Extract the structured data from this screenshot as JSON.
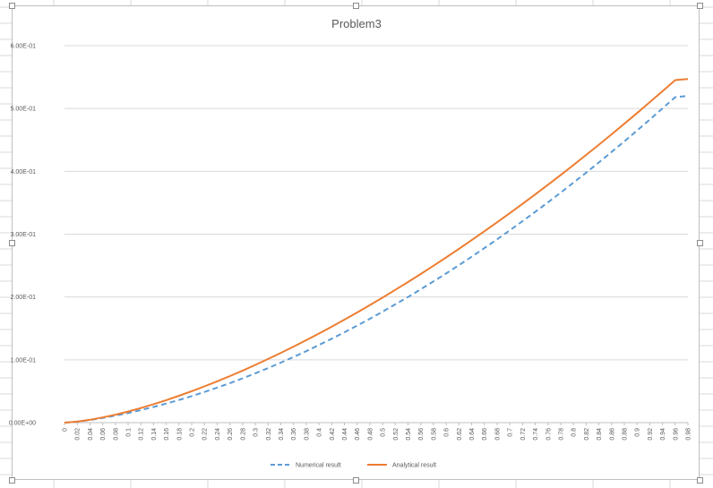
{
  "chart_data": {
    "type": "line",
    "title": "Problem3",
    "xlabel": "",
    "ylabel": "",
    "ylim": [
      0,
      0.6
    ],
    "yticks": [
      "0.00E+00",
      "1.00E-01",
      "2.00E-01",
      "3.00E-01",
      "4.00E-01",
      "5.00E-01",
      "6.00E-01"
    ],
    "categories": [
      "0",
      "0.02",
      "0.04",
      "0.06",
      "0.08",
      "0.1",
      "0.12",
      "0.14",
      "0.16",
      "0.18",
      "0.2",
      "0.22",
      "0.24",
      "0.26",
      "0.28",
      "0.3",
      "0.32",
      "0.34",
      "0.36",
      "0.38",
      "0.4",
      "0.42",
      "0.44",
      "0.46",
      "0.48",
      "0.5",
      "0.52",
      "0.54",
      "0.56",
      "0.58",
      "0.6",
      "0.62",
      "0.64",
      "0.66",
      "0.68",
      "0.7",
      "0.72",
      "0.74",
      "0.76",
      "0.78",
      "0.8",
      "0.82",
      "0.84",
      "0.86",
      "0.88",
      "0.9",
      "0.92",
      "0.94",
      "0.96",
      "0.98"
    ],
    "grid": true,
    "legend_position": "bottom",
    "series": [
      {
        "name": "Numerical result",
        "color": "#5b9bd5",
        "style": "dashed",
        "values": [
          0.0,
          0.0014,
          0.0042,
          0.0074,
          0.0111,
          0.0153,
          0.0199,
          0.0249,
          0.0303,
          0.036,
          0.0422,
          0.0488,
          0.0557,
          0.0629,
          0.0705,
          0.0785,
          0.0868,
          0.0955,
          0.1045,
          0.1138,
          0.1235,
          0.1335,
          0.1438,
          0.1544,
          0.1653,
          0.1766,
          0.1882,
          0.2,
          0.2122,
          0.2247,
          0.2375,
          0.2506,
          0.264,
          0.2777,
          0.2917,
          0.306,
          0.3206,
          0.3355,
          0.3507,
          0.3661,
          0.3819,
          0.3979,
          0.4142,
          0.4308,
          0.4477,
          0.4649,
          0.4823,
          0.5001,
          0.5181,
          0.52
        ]
      },
      {
        "name": "Analytical result",
        "color": "#ed7d31",
        "style": "solid",
        "values": [
          0.0,
          0.0016,
          0.0045,
          0.0083,
          0.0127,
          0.0177,
          0.0232,
          0.0293,
          0.0358,
          0.0427,
          0.05,
          0.0577,
          0.0657,
          0.0741,
          0.0828,
          0.0919,
          0.1013,
          0.111,
          0.121,
          0.1313,
          0.1418,
          0.1527,
          0.1639,
          0.1753,
          0.187,
          0.199,
          0.2113,
          0.2238,
          0.2366,
          0.2497,
          0.263,
          0.2765,
          0.2904,
          0.3045,
          0.3188,
          0.3334,
          0.3482,
          0.3633,
          0.3786,
          0.3942,
          0.41,
          0.4261,
          0.4424,
          0.4589,
          0.4757,
          0.4927,
          0.51,
          0.5275,
          0.5452,
          0.547
        ]
      }
    ]
  }
}
